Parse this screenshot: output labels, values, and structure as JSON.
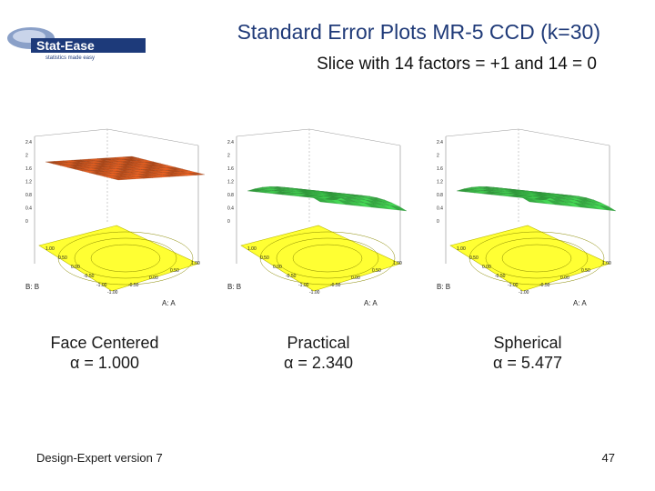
{
  "logo": {
    "main": "Stat-Ease",
    "tagline": "statistics made easy"
  },
  "title": "Standard Error Plots MR-5 CCD (k=30)",
  "subtitle": "Slice with 14 factors = +1 and 14 = 0",
  "plots": [
    {
      "caption": "Face Centered",
      "alpha": "α = 1.000",
      "surface_color": "#d2571e",
      "ztick_labels": [
        "2.4",
        "2",
        "1.6",
        "1.2",
        "0.8",
        "0.4",
        "0"
      ],
      "a_ticks": [
        "-1.00",
        "-0.50",
        "0.00",
        "0.50",
        "1.00"
      ],
      "b_ticks": [
        "1.00",
        "0.50",
        "0.00",
        "-0.50",
        "-1.00"
      ],
      "a_label": "A: A",
      "b_label": "B: B"
    },
    {
      "caption": "Practical",
      "alpha": "α = 2.340",
      "surface_color": "#3cc04a",
      "ztick_labels": [
        "2.4",
        "2",
        "1.6",
        "1.2",
        "0.8",
        "0.4",
        "0"
      ],
      "a_ticks": [
        "-1.00",
        "-0.50",
        "0.00",
        "0.50",
        "1.00"
      ],
      "b_ticks": [
        "1.00",
        "0.50",
        "0.00",
        "-0.50",
        "-1.00"
      ],
      "a_label": "A: A",
      "b_label": "B: B"
    },
    {
      "caption": "Spherical",
      "alpha": "α = 5.477",
      "surface_color": "#3cc04a",
      "ztick_labels": [
        "2.4",
        "2",
        "1.6",
        "1.2",
        "0.8",
        "0.4",
        "0"
      ],
      "a_ticks": [
        "-1.00",
        "-0.50",
        "0.00",
        "0.50",
        "1.00"
      ],
      "b_ticks": [
        "1.00",
        "0.50",
        "0.00",
        "-0.50",
        "-1.00"
      ],
      "a_label": "A: A",
      "b_label": "B: B"
    }
  ],
  "colors": {
    "contour_base": "#ffff33",
    "frame": "#9a9a9a",
    "title": "#1f3a78"
  },
  "footer": {
    "left": "Design-Expert version 7",
    "page_number": "47"
  }
}
